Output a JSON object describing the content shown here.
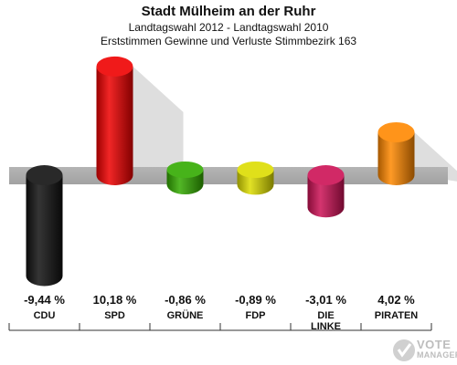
{
  "title": "Stadt Mülheim an der Ruhr",
  "subtitle": "Landtagswahl 2012 - Landtagswahl 2010",
  "subsubtitle": "Erststimmen Gewinne und Verluste Stimmbezirk 163",
  "watermark": {
    "line1": "VOTE",
    "line2": "MANAGER"
  },
  "chart_data": {
    "type": "bar",
    "categories": [
      "CDU",
      "SPD",
      "GRÜNE",
      "FDP",
      "DIE LINKE",
      "PIRATEN"
    ],
    "category_lines": [
      [
        "CDU"
      ],
      [
        "SPD"
      ],
      [
        "GRÜNE"
      ],
      [
        "FDP"
      ],
      [
        "DIE",
        "LINKE"
      ],
      [
        "PIRATEN"
      ]
    ],
    "values": [
      -9.44,
      10.18,
      -0.86,
      -0.89,
      -3.01,
      4.02
    ],
    "value_labels": [
      "-9,44 %",
      "10,18 %",
      "-0,86 %",
      "-0,89 %",
      "-3,01 %",
      "4,02 %"
    ],
    "colors": [
      "#111111",
      "#ee0000",
      "#33aa00",
      "#dddd00",
      "#cc1155",
      "#ff8800"
    ],
    "title": "Stadt Mülheim an der Ruhr",
    "xlabel": "",
    "ylabel": "",
    "grid": false,
    "legend": "none"
  }
}
